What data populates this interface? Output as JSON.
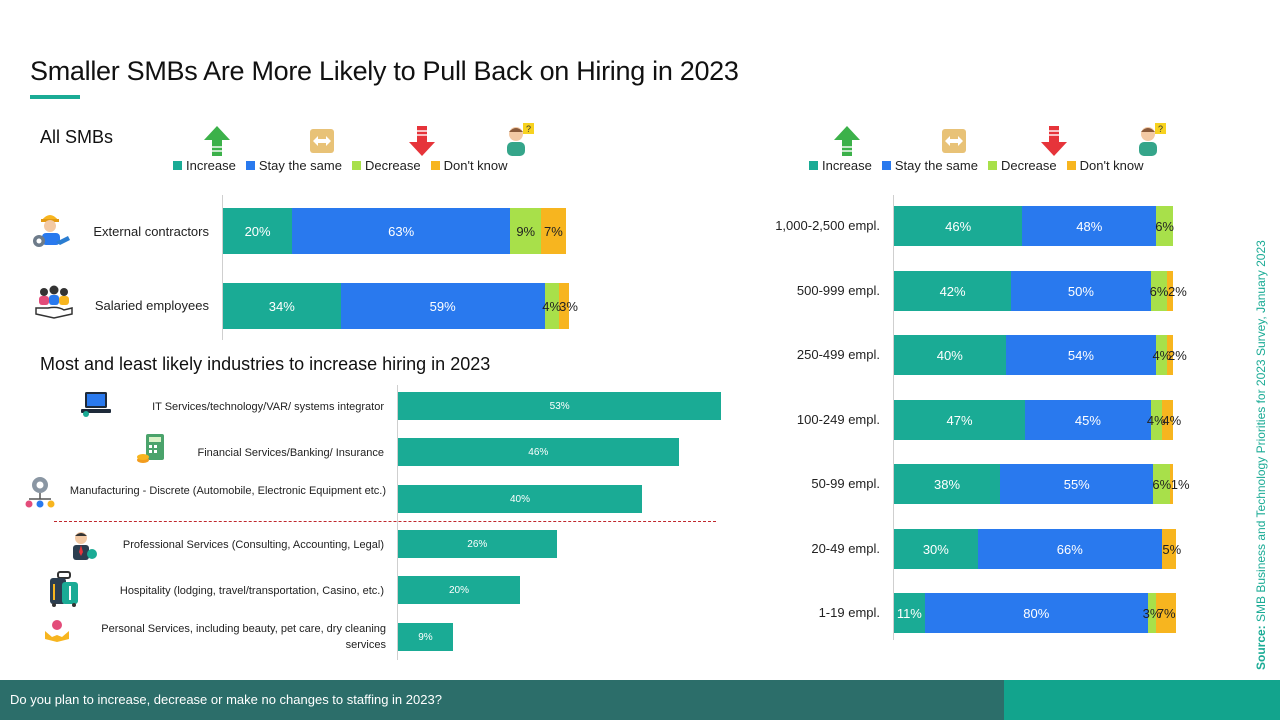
{
  "title": "Smaller SMBs Are More Likely to Pull Back on Hiring in 2023",
  "colors": {
    "increase": "#1aab95",
    "stay": "#2979ee",
    "decrease": "#a8e04a",
    "dont_know": "#f7b51f",
    "accent": "#1aab95",
    "footer": "#2c6e6a"
  },
  "legend": [
    "Increase",
    "Stay the same",
    "Decrease",
    "Don't know"
  ],
  "legend_icons": [
    "arrow-up-icon",
    "equal-arrows-icon",
    "arrow-down-icon",
    "confused-person-icon"
  ],
  "sections": {
    "all_smbs": "All SMBs",
    "industries": "Most and least likely industries to increase hiring in 2023"
  },
  "source": {
    "prefix": "Source:",
    "text": " SMB Business and Technology Priorities for 2023 Survey, January 2023"
  },
  "footer": {
    "question": "Do you plan to increase, decrease or make no changes to staffing in 2023?"
  },
  "chart_data": [
    {
      "type": "bar",
      "orientation": "horizontal",
      "stacked": true,
      "title": "All SMBs",
      "categories": [
        "External contractors",
        "Salaried employees"
      ],
      "category_icons": [
        "worker-gear-icon",
        "team-hand-icon"
      ],
      "series": [
        {
          "name": "Increase",
          "values": [
            20,
            34
          ],
          "labels": [
            "20%",
            "34%"
          ]
        },
        {
          "name": "Stay the same",
          "values": [
            63,
            59
          ],
          "labels": [
            "63%",
            "59%"
          ]
        },
        {
          "name": "Decrease",
          "values": [
            9,
            4
          ],
          "labels": [
            "9%",
            "4%"
          ]
        },
        {
          "name": "Don't know",
          "values": [
            7,
            3
          ],
          "labels": [
            "7%",
            "3%"
          ]
        }
      ],
      "legend_position": "top"
    },
    {
      "type": "bar",
      "orientation": "horizontal",
      "title": "Most and least likely industries to increase hiring in 2023",
      "categories": [
        "IT Services/technology/VAR/ systems integrator",
        "Financial Services/Banking/ Insurance",
        "Manufacturing - Discrete (Automobile, Electronic Equipment etc.)",
        "Professional Services (Consulting, Accounting, Legal)",
        "Hospitality (lodging, travel/transportation, Casino, etc.)",
        "Personal Services, including beauty, pet care, dry cleaning services"
      ],
      "category_icons": [
        "laptop-icon",
        "calculator-coins-icon",
        "gears-network-icon",
        "businessman-icon",
        "luggage-icon",
        "hands-care-icon"
      ],
      "values": [
        53,
        46,
        40,
        26,
        20,
        9
      ],
      "labels": [
        "53%",
        "46%",
        "40%",
        "26%",
        "20%",
        "9%"
      ],
      "divider_after_index": 2
    },
    {
      "type": "bar",
      "orientation": "horizontal",
      "stacked": true,
      "categories": [
        "1,000-2,500 empl.",
        "500-999 empl.",
        "250-499 empl.",
        "100-249 empl.",
        "50-99 empl.",
        "20-49 empl.",
        "1-19 empl."
      ],
      "series": [
        {
          "name": "Increase",
          "values": [
            46,
            42,
            40,
            47,
            38,
            30,
            11
          ],
          "labels": [
            "46%",
            "42%",
            "40%",
            "47%",
            "38%",
            "30%",
            "11%"
          ]
        },
        {
          "name": "Stay the same",
          "values": [
            48,
            50,
            54,
            45,
            55,
            66,
            80
          ],
          "labels": [
            "48%",
            "50%",
            "54%",
            "45%",
            "55%",
            "66%",
            "80%"
          ]
        },
        {
          "name": "Decrease",
          "values": [
            6,
            6,
            4,
            4,
            6,
            0,
            3
          ],
          "labels": [
            "6%",
            "6%",
            "4%",
            "4%",
            "6%",
            "",
            "3%"
          ]
        },
        {
          "name": "Don't know",
          "values": [
            0,
            2,
            2,
            4,
            1,
            5,
            7
          ],
          "labels": [
            "",
            "2%",
            "2%",
            "4%",
            "1%",
            "5%",
            "7%"
          ]
        }
      ],
      "legend_position": "top"
    }
  ]
}
